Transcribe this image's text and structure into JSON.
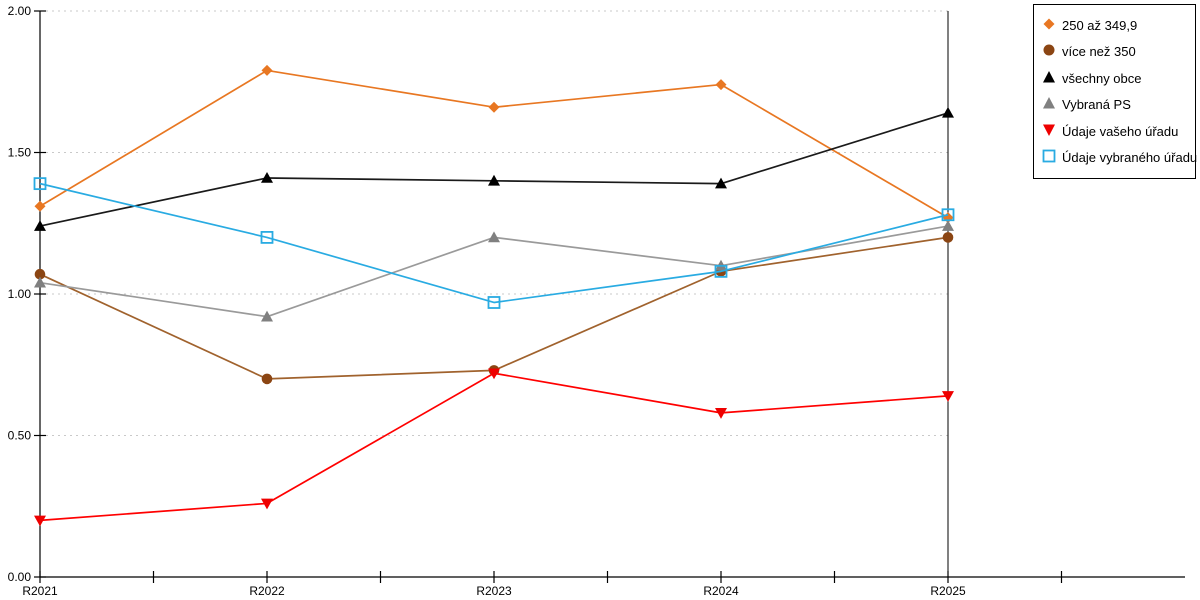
{
  "chart_data": {
    "type": "line",
    "title": "",
    "xlabel": "",
    "ylabel": "",
    "categories": [
      "R2021",
      "R2022",
      "R2023",
      "R2024",
      "R2025"
    ],
    "series": [
      {
        "name": "250 až 349,9",
        "values": [
          1.31,
          1.79,
          1.66,
          1.74,
          1.27
        ],
        "color": "#E87722",
        "marker": "diamond",
        "marker_color": "#E87722"
      },
      {
        "name": "více než 350",
        "values": [
          1.07,
          0.7,
          0.73,
          1.08,
          1.2
        ],
        "color": "#A0622D",
        "marker": "circle",
        "marker_color": "#8B4513"
      },
      {
        "name": "všechny obce",
        "values": [
          1.24,
          1.41,
          1.4,
          1.39,
          1.64
        ],
        "color": "#1A1A1A",
        "marker": "triangle-up",
        "marker_color": "#000000"
      },
      {
        "name": "Vybraná PS",
        "values": [
          1.04,
          0.92,
          1.2,
          1.1,
          1.24
        ],
        "color": "#9A9A9A",
        "marker": "triangle-up",
        "marker_color": "#808080"
      },
      {
        "name": "Údaje vašeho úřadu",
        "values": [
          0.2,
          0.26,
          0.72,
          0.58,
          0.64
        ],
        "color": "#FF0000",
        "marker": "triangle-down",
        "marker_color": "#EE0000"
      },
      {
        "name": "Údaje vybraného úřadu",
        "values": [
          1.39,
          1.2,
          0.97,
          1.08,
          1.28
        ],
        "color": "#29ABE2",
        "marker": "square-open",
        "marker_color": "#29ABE2"
      }
    ],
    "ylim": [
      0,
      2
    ],
    "yticks": [
      0,
      0.5,
      1,
      1.5,
      2
    ],
    "ytick_format": "0.00",
    "grid": "horizontal-dotted",
    "gridline_color": "#C9C9C9",
    "axis_color": "#000000",
    "legend_position": "top-right"
  }
}
